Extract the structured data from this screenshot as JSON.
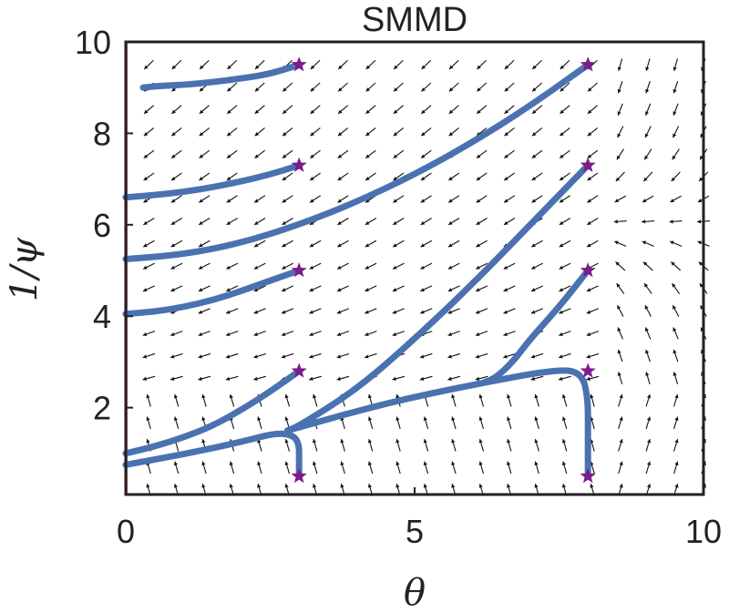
{
  "chart_data": {
    "type": "line",
    "title": "SMMD",
    "xlabel": "θ",
    "ylabel": "1/ψ",
    "xlim": [
      0,
      10
    ],
    "ylim": [
      0.1,
      10
    ],
    "xticks": [
      0,
      5,
      10
    ],
    "yticks": [
      2,
      4,
      6,
      8,
      10
    ],
    "grid": false,
    "colors": {
      "trajectory": "#4a72b0",
      "start_marker": "#7d1a8c",
      "arrow": "#111111",
      "axis": "#222222",
      "boundary": "#c0504d"
    },
    "quiver": {
      "x": [
        0.4,
        10
      ],
      "y": [
        0.2,
        9.5
      ],
      "nx": 21,
      "ny": 20
    },
    "start_markers": [
      {
        "x": 3,
        "y": 9.5
      },
      {
        "x": 3,
        "y": 7.3
      },
      {
        "x": 3,
        "y": 5.0
      },
      {
        "x": 3,
        "y": 2.8
      },
      {
        "x": 3,
        "y": 0.5
      },
      {
        "x": 8,
        "y": 9.5
      },
      {
        "x": 8,
        "y": 7.3
      },
      {
        "x": 8,
        "y": 5.0
      },
      {
        "x": 8,
        "y": 2.8
      },
      {
        "x": 8,
        "y": 0.5
      }
    ],
    "series": [
      {
        "x": [
          3.0,
          2.5,
          2.0,
          1.5,
          1.0,
          0.6,
          0.3
        ],
        "y": [
          9.5,
          9.3,
          9.2,
          9.12,
          9.06,
          9.04,
          9.0
        ]
      },
      {
        "x": [
          3.0,
          2.5,
          2.0,
          1.5,
          1.0,
          0.5,
          0.0
        ],
        "y": [
          7.3,
          7.1,
          6.95,
          6.82,
          6.72,
          6.65,
          6.6
        ]
      },
      {
        "x": [
          3.0,
          2.5,
          2.0,
          1.5,
          1.0,
          0.5,
          0.0
        ],
        "y": [
          5.0,
          4.78,
          4.55,
          4.35,
          4.2,
          4.1,
          4.05
        ]
      },
      {
        "x": [
          3.0,
          2.5,
          2.0,
          1.5,
          1.0,
          0.5,
          0.0
        ],
        "y": [
          2.8,
          2.35,
          1.95,
          1.6,
          1.35,
          1.15,
          1.0
        ]
      },
      {
        "x": [
          3.0,
          3.0,
          3.0,
          2.9,
          2.6,
          2.0,
          1.0,
          0.0
        ],
        "y": [
          0.5,
          0.9,
          1.2,
          1.4,
          1.45,
          1.25,
          0.98,
          0.75
        ]
      },
      {
        "x": [
          8.0,
          7.0,
          6.0,
          5.0,
          4.0,
          3.0,
          2.0,
          1.0,
          0.0
        ],
        "y": [
          9.5,
          8.6,
          7.8,
          7.1,
          6.5,
          6.0,
          5.6,
          5.35,
          5.25
        ]
      },
      {
        "x": [
          8.0,
          7.0,
          6.0,
          5.0,
          4.0,
          3.0,
          2.8
        ],
        "y": [
          7.3,
          6.0,
          4.7,
          3.5,
          2.4,
          1.6,
          1.5
        ]
      },
      {
        "x": [
          8.0,
          7.5,
          7.0,
          6.7,
          6.4,
          6.2
        ],
        "y": [
          5.0,
          4.2,
          3.5,
          3.0,
          2.65,
          2.55
        ]
      },
      {
        "x": [
          8.0,
          8.0,
          8.0,
          8.0,
          7.9,
          7.5,
          6.0,
          4.5,
          2.8
        ],
        "y": [
          0.5,
          0.9,
          1.5,
          2.2,
          2.75,
          2.85,
          2.5,
          2.1,
          1.5
        ]
      }
    ]
  }
}
